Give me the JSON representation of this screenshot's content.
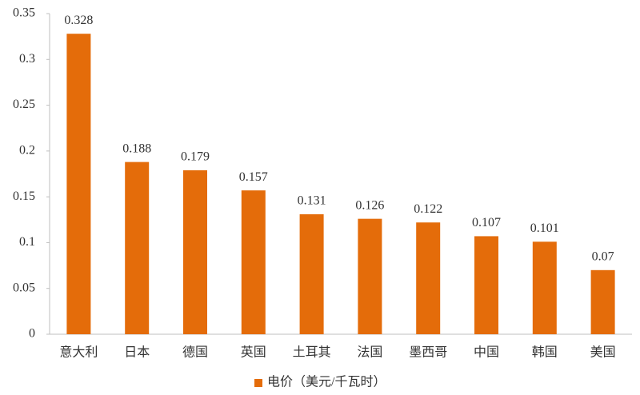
{
  "chart_data": {
    "type": "bar",
    "categories": [
      "意大利",
      "日本",
      "德国",
      "英国",
      "土耳其",
      "法国",
      "墨西哥",
      "中国",
      "韩国",
      "美国"
    ],
    "series": [
      {
        "name": "电价（美元/千瓦时）",
        "color": "#e46c0a",
        "values": [
          0.328,
          0.188,
          0.179,
          0.157,
          0.131,
          0.126,
          0.122,
          0.107,
          0.101,
          0.07
        ]
      }
    ],
    "ylim": [
      0,
      0.35
    ],
    "yticks": [
      0,
      0.05,
      0.1,
      0.15,
      0.2,
      0.25,
      0.3,
      0.35
    ],
    "grid": false,
    "legend": "bottom"
  }
}
